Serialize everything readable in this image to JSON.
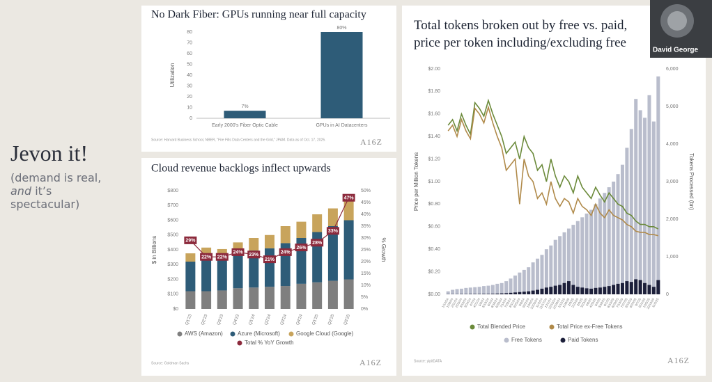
{
  "headline": "Jevon it!",
  "subtitle_parts": [
    "(demand is real, ",
    "and",
    " it’s spectacular)"
  ],
  "presenter": "David George",
  "chart_data": [
    {
      "type": "bar",
      "title": "No Dark Fiber: GPUs running near full capacity",
      "ylabel": "Utilization",
      "categories": [
        "Early 2000's Fiber Optic Cable",
        "GPUs in AI Datacenters"
      ],
      "values": [
        7,
        80
      ],
      "value_labels": [
        "7%",
        "80%"
      ],
      "color": "#2e5c78",
      "ylim": [
        0,
        80
      ],
      "yticks": [
        0,
        10,
        20,
        30,
        40,
        50,
        60,
        70,
        80
      ],
      "grid": false,
      "source": "Source: Harvard Business School, NBER, \"Fire Fills Data Centers and the Grid,\" JPAM. Data as of Oct. 17, 2025.",
      "logo": "A16Z"
    },
    {
      "type": "stacked_bar",
      "title": "Cloud revenue backlogs inflect upwards",
      "ylabel": "$ in Billions",
      "y2label": "% Growth",
      "categories": [
        "Q1'23",
        "Q2'23",
        "Q3'23",
        "Q4'23",
        "Q1'24",
        "Q2'24",
        "Q3'24",
        "Q4'24",
        "Q1'25",
        "Q2'25",
        "Q3'25"
      ],
      "series": [
        {
          "name": "AWS (Amazon)",
          "kind": "bar",
          "color": "#7f7f7f",
          "values": [
            120,
            120,
            125,
            140,
            145,
            150,
            155,
            170,
            180,
            190,
            200
          ]
        },
        {
          "name": "Azure (Microsoft)",
          "kind": "bar",
          "color": "#2e5c78",
          "values": [
            200,
            230,
            215,
            230,
            250,
            260,
            290,
            310,
            340,
            370,
            400
          ]
        },
        {
          "name": "Google Cloud (Google)",
          "kind": "bar",
          "color": "#c8a45c",
          "values": [
            56,
            65,
            65,
            80,
            85,
            90,
            115,
            110,
            120,
            120,
            160
          ]
        },
        {
          "name": "Total % YoY Growth",
          "kind": "line",
          "axis": "y2",
          "color": "#8c2a3c",
          "values": [
            29,
            22,
            22,
            24,
            23,
            21,
            24,
            26,
            28,
            33,
            47
          ],
          "value_labels": [
            "29%",
            "22%",
            "22%",
            "24%",
            "23%",
            "21%",
            "24%",
            "26%",
            "28%",
            "33%",
            "47%"
          ]
        }
      ],
      "ylim": [
        0,
        800
      ],
      "yticks": [
        {
          "value": 0,
          "label": "$0"
        },
        {
          "value": 100,
          "label": "$100"
        },
        {
          "value": 200,
          "label": "$200"
        },
        {
          "value": 300,
          "label": "$300"
        },
        {
          "value": 400,
          "label": "$400"
        },
        {
          "value": 500,
          "label": "$500"
        },
        {
          "value": 600,
          "label": "$600"
        },
        {
          "value": 700,
          "label": "$700"
        },
        {
          "value": 800,
          "label": "$800"
        }
      ],
      "y2lim": [
        0,
        50
      ],
      "y2ticks": [
        {
          "value": 0,
          "label": "0%"
        },
        {
          "value": 5,
          "label": "5%"
        },
        {
          "value": 10,
          "label": "10%"
        },
        {
          "value": 15,
          "label": "15%"
        },
        {
          "value": 20,
          "label": "20%"
        },
        {
          "value": 25,
          "label": "25%"
        },
        {
          "value": 30,
          "label": "30%"
        },
        {
          "value": 35,
          "label": "35%"
        },
        {
          "value": 40,
          "label": "40%"
        },
        {
          "value": 45,
          "label": "45%"
        },
        {
          "value": 50,
          "label": "50%"
        }
      ],
      "grid": false,
      "source": "Source: Goldman Sachs",
      "logo": "A16Z"
    },
    {
      "type": "bar_line",
      "title": "Total tokens broken out by free vs. paid, price per token including/excluding free",
      "ylabel": "Price per Million Tokens",
      "y2label": "Tokens Processed (bn)",
      "categories": [
        "1/14/24",
        "1/28/24",
        "2/11/24",
        "2/25/24",
        "3/10/24",
        "3/24/24",
        "4/7/24",
        "4/21/24",
        "5/5/24",
        "5/19/24",
        "6/2/24",
        "6/16/24",
        "6/30/24",
        "7/14/24",
        "7/28/24",
        "8/11/24",
        "8/25/24",
        "9/8/24",
        "9/22/24",
        "10/6/24",
        "10/20/24",
        "11/3/24",
        "11/17/24",
        "12/1/24",
        "12/15/24",
        "12/29/24",
        "1/12/25",
        "1/26/25",
        "2/9/25",
        "2/23/25",
        "3/9/25",
        "3/23/25",
        "4/6/25",
        "4/20/25",
        "5/4/25",
        "5/18/25",
        "6/1/25",
        "6/15/25",
        "6/29/25",
        "7/13/25",
        "7/27/25",
        "8/10/25",
        "8/24/25",
        "9/7/25",
        "9/21/25",
        "10/5/25",
        "10/19/25",
        "11/2/25"
      ],
      "series": [
        {
          "name": "Total Blended Price",
          "kind": "line",
          "color": "#6b8a3a",
          "values": [
            1.5,
            1.55,
            1.45,
            1.6,
            1.5,
            1.42,
            1.7,
            1.65,
            1.58,
            1.72,
            1.6,
            1.5,
            1.4,
            1.25,
            1.3,
            1.35,
            1.2,
            1.4,
            1.3,
            1.25,
            1.1,
            1.15,
            1.0,
            1.2,
            1.05,
            0.95,
            1.05,
            1.0,
            0.9,
            1.05,
            0.95,
            0.9,
            0.85,
            0.95,
            0.88,
            0.82,
            0.9,
            0.85,
            0.8,
            0.78,
            0.72,
            0.7,
            0.65,
            0.62,
            0.62,
            0.6,
            0.6,
            0.58
          ]
        },
        {
          "name": "Total Price ex-Free Tokens",
          "kind": "line",
          "color": "#b08a4a",
          "values": [
            1.45,
            1.5,
            1.4,
            1.55,
            1.45,
            1.38,
            1.65,
            1.6,
            1.52,
            1.66,
            1.52,
            1.4,
            1.3,
            1.1,
            1.15,
            1.2,
            0.8,
            1.2,
            1.05,
            1.0,
            0.85,
            0.9,
            0.8,
            1.0,
            0.85,
            0.78,
            0.85,
            0.82,
            0.72,
            0.85,
            0.78,
            0.75,
            0.7,
            0.8,
            0.72,
            0.68,
            0.75,
            0.7,
            0.68,
            0.66,
            0.62,
            0.6,
            0.56,
            0.55,
            0.55,
            0.53,
            0.53,
            0.52
          ]
        },
        {
          "name": "Free Tokens",
          "kind": "bar",
          "axis": "y2",
          "color": "#b9bdcc",
          "values": [
            80,
            120,
            140,
            150,
            170,
            180,
            190,
            200,
            220,
            230,
            250,
            280,
            300,
            350,
            420,
            500,
            580,
            650,
            720,
            850,
            950,
            1050,
            1200,
            1300,
            1450,
            1550,
            1650,
            1750,
            1850,
            1950,
            2050,
            2150,
            2250,
            2400,
            2550,
            2700,
            2850,
            3000,
            3200,
            3450,
            3900,
            4400,
            5200,
            4900,
            4700,
            5300,
            4600,
            5800
          ]
        },
        {
          "name": "Paid Tokens",
          "kind": "bar",
          "axis": "y2",
          "color": "#1c1f3a",
          "values": [
            5,
            5,
            5,
            8,
            8,
            10,
            10,
            10,
            12,
            12,
            15,
            20,
            25,
            30,
            40,
            50,
            60,
            70,
            80,
            100,
            120,
            150,
            180,
            200,
            230,
            250,
            300,
            350,
            250,
            200,
            180,
            160,
            150,
            170,
            180,
            200,
            220,
            250,
            280,
            300,
            350,
            330,
            400,
            380,
            300,
            250,
            200,
            380
          ]
        }
      ],
      "ylim": [
        0,
        2
      ],
      "yticks": [
        {
          "value": 0,
          "label": "$0.00"
        },
        {
          "value": 0.2,
          "label": "$0.20"
        },
        {
          "value": 0.4,
          "label": "$0.40"
        },
        {
          "value": 0.6,
          "label": "$0.60"
        },
        {
          "value": 0.8,
          "label": "$0.80"
        },
        {
          "value": 1,
          "label": "$1.00"
        },
        {
          "value": 1.2,
          "label": "$1.20"
        },
        {
          "value": 1.4,
          "label": "$1.40"
        },
        {
          "value": 1.6,
          "label": "$1.60"
        },
        {
          "value": 1.8,
          "label": "$1.80"
        },
        {
          "value": 2,
          "label": "$2.00"
        }
      ],
      "y2lim": [
        0,
        6000
      ],
      "y2ticks": [
        0,
        {
          "value": 1000,
          "label": "1,000"
        },
        {
          "value": 2000,
          "label": "2,000"
        },
        {
          "value": 3000,
          "label": "3,000"
        },
        {
          "value": 4000,
          "label": "4,000"
        },
        {
          "value": 5000,
          "label": "5,000"
        },
        {
          "value": 6000,
          "label": "6,000"
        }
      ],
      "grid": false,
      "source": "Source: yipitDATA",
      "logo": "A16Z"
    }
  ]
}
